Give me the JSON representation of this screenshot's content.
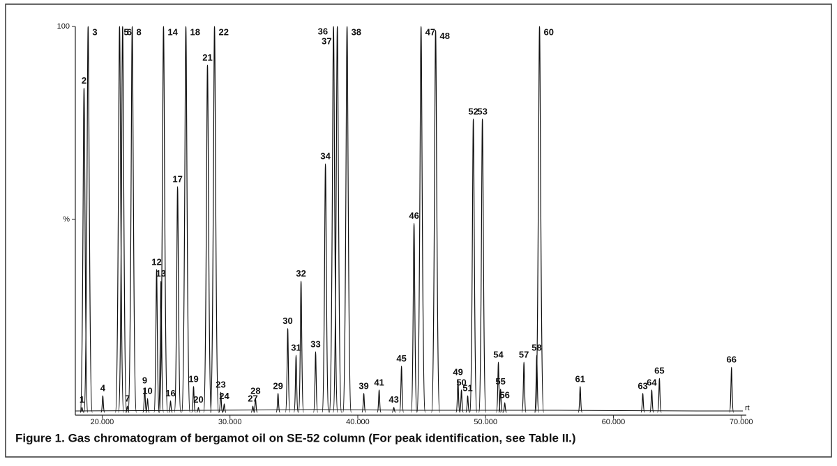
{
  "chart_data": {
    "type": "chromatogram",
    "title": "Figure 1. Gas chromatogram of bergamot oil on SE-52 column (For peak identification, see Table II.)",
    "xlabel": "rt",
    "xlim": [
      17.9,
      70.4
    ],
    "ylim": [
      0,
      100
    ],
    "xticks": [
      {
        "value": 20,
        "label": "20.000"
      },
      {
        "value": 30,
        "label": "30.000"
      },
      {
        "value": 40,
        "label": "40.000"
      },
      {
        "value": 50,
        "label": "50.000"
      },
      {
        "value": 60,
        "label": "60.000"
      },
      {
        "value": 70,
        "label": "70.000"
      }
    ],
    "yticks": [
      {
        "value": 50,
        "label": "%"
      },
      100
    ],
    "color": "#111111",
    "peaks": {
      "labels": [
        "1",
        "2",
        "3",
        "4",
        "5",
        "6",
        "7",
        "8",
        "9",
        "10",
        "12",
        "13",
        "14",
        "16",
        "17",
        "18",
        "19",
        "20",
        "21",
        "22",
        "23",
        "24",
        "27",
        "28",
        "29",
        "30",
        "31",
        "32",
        "33",
        "34",
        "36",
        "37",
        "38",
        "39",
        "41",
        "43",
        "45",
        "46",
        "47",
        "48",
        "49",
        "50",
        "51",
        "52",
        "53",
        "54",
        "55",
        "56",
        "57",
        "58",
        "60",
        "61",
        "63",
        "64",
        "65",
        "66"
      ],
      "x": [
        18.42,
        18.58,
        18.9,
        20.05,
        21.36,
        21.6,
        21.97,
        22.35,
        23.33,
        23.55,
        24.26,
        24.6,
        24.8,
        25.35,
        25.9,
        26.55,
        27.15,
        27.53,
        28.24,
        28.79,
        29.28,
        29.55,
        31.79,
        32.0,
        33.76,
        34.52,
        35.17,
        35.56,
        36.7,
        37.47,
        38.1,
        38.4,
        39.16,
        40.47,
        41.67,
        42.82,
        43.42,
        44.4,
        44.95,
        46.09,
        47.84,
        48.11,
        48.6,
        49.04,
        49.75,
        51.0,
        51.17,
        51.5,
        53.0,
        54.0,
        54.22,
        57.4,
        62.3,
        63.0,
        63.6,
        69.24
      ],
      "values": [
        1.3,
        84,
        100,
        4.3,
        100,
        100,
        1.6,
        100,
        6.3,
        3.6,
        37,
        34,
        100,
        3,
        58.5,
        100,
        6.7,
        1.3,
        90,
        100,
        5.2,
        2.2,
        1.6,
        3.6,
        4.9,
        21.7,
        14.8,
        34,
        15.7,
        64.4,
        100,
        100,
        100,
        4.9,
        5.8,
        1.3,
        12,
        49,
        100,
        99,
        8.5,
        5.8,
        4.3,
        76,
        76,
        13,
        6,
        2.5,
        13,
        14.8,
        100,
        6.7,
        4.9,
        5.8,
        8.8,
        11.7
      ]
    }
  }
}
